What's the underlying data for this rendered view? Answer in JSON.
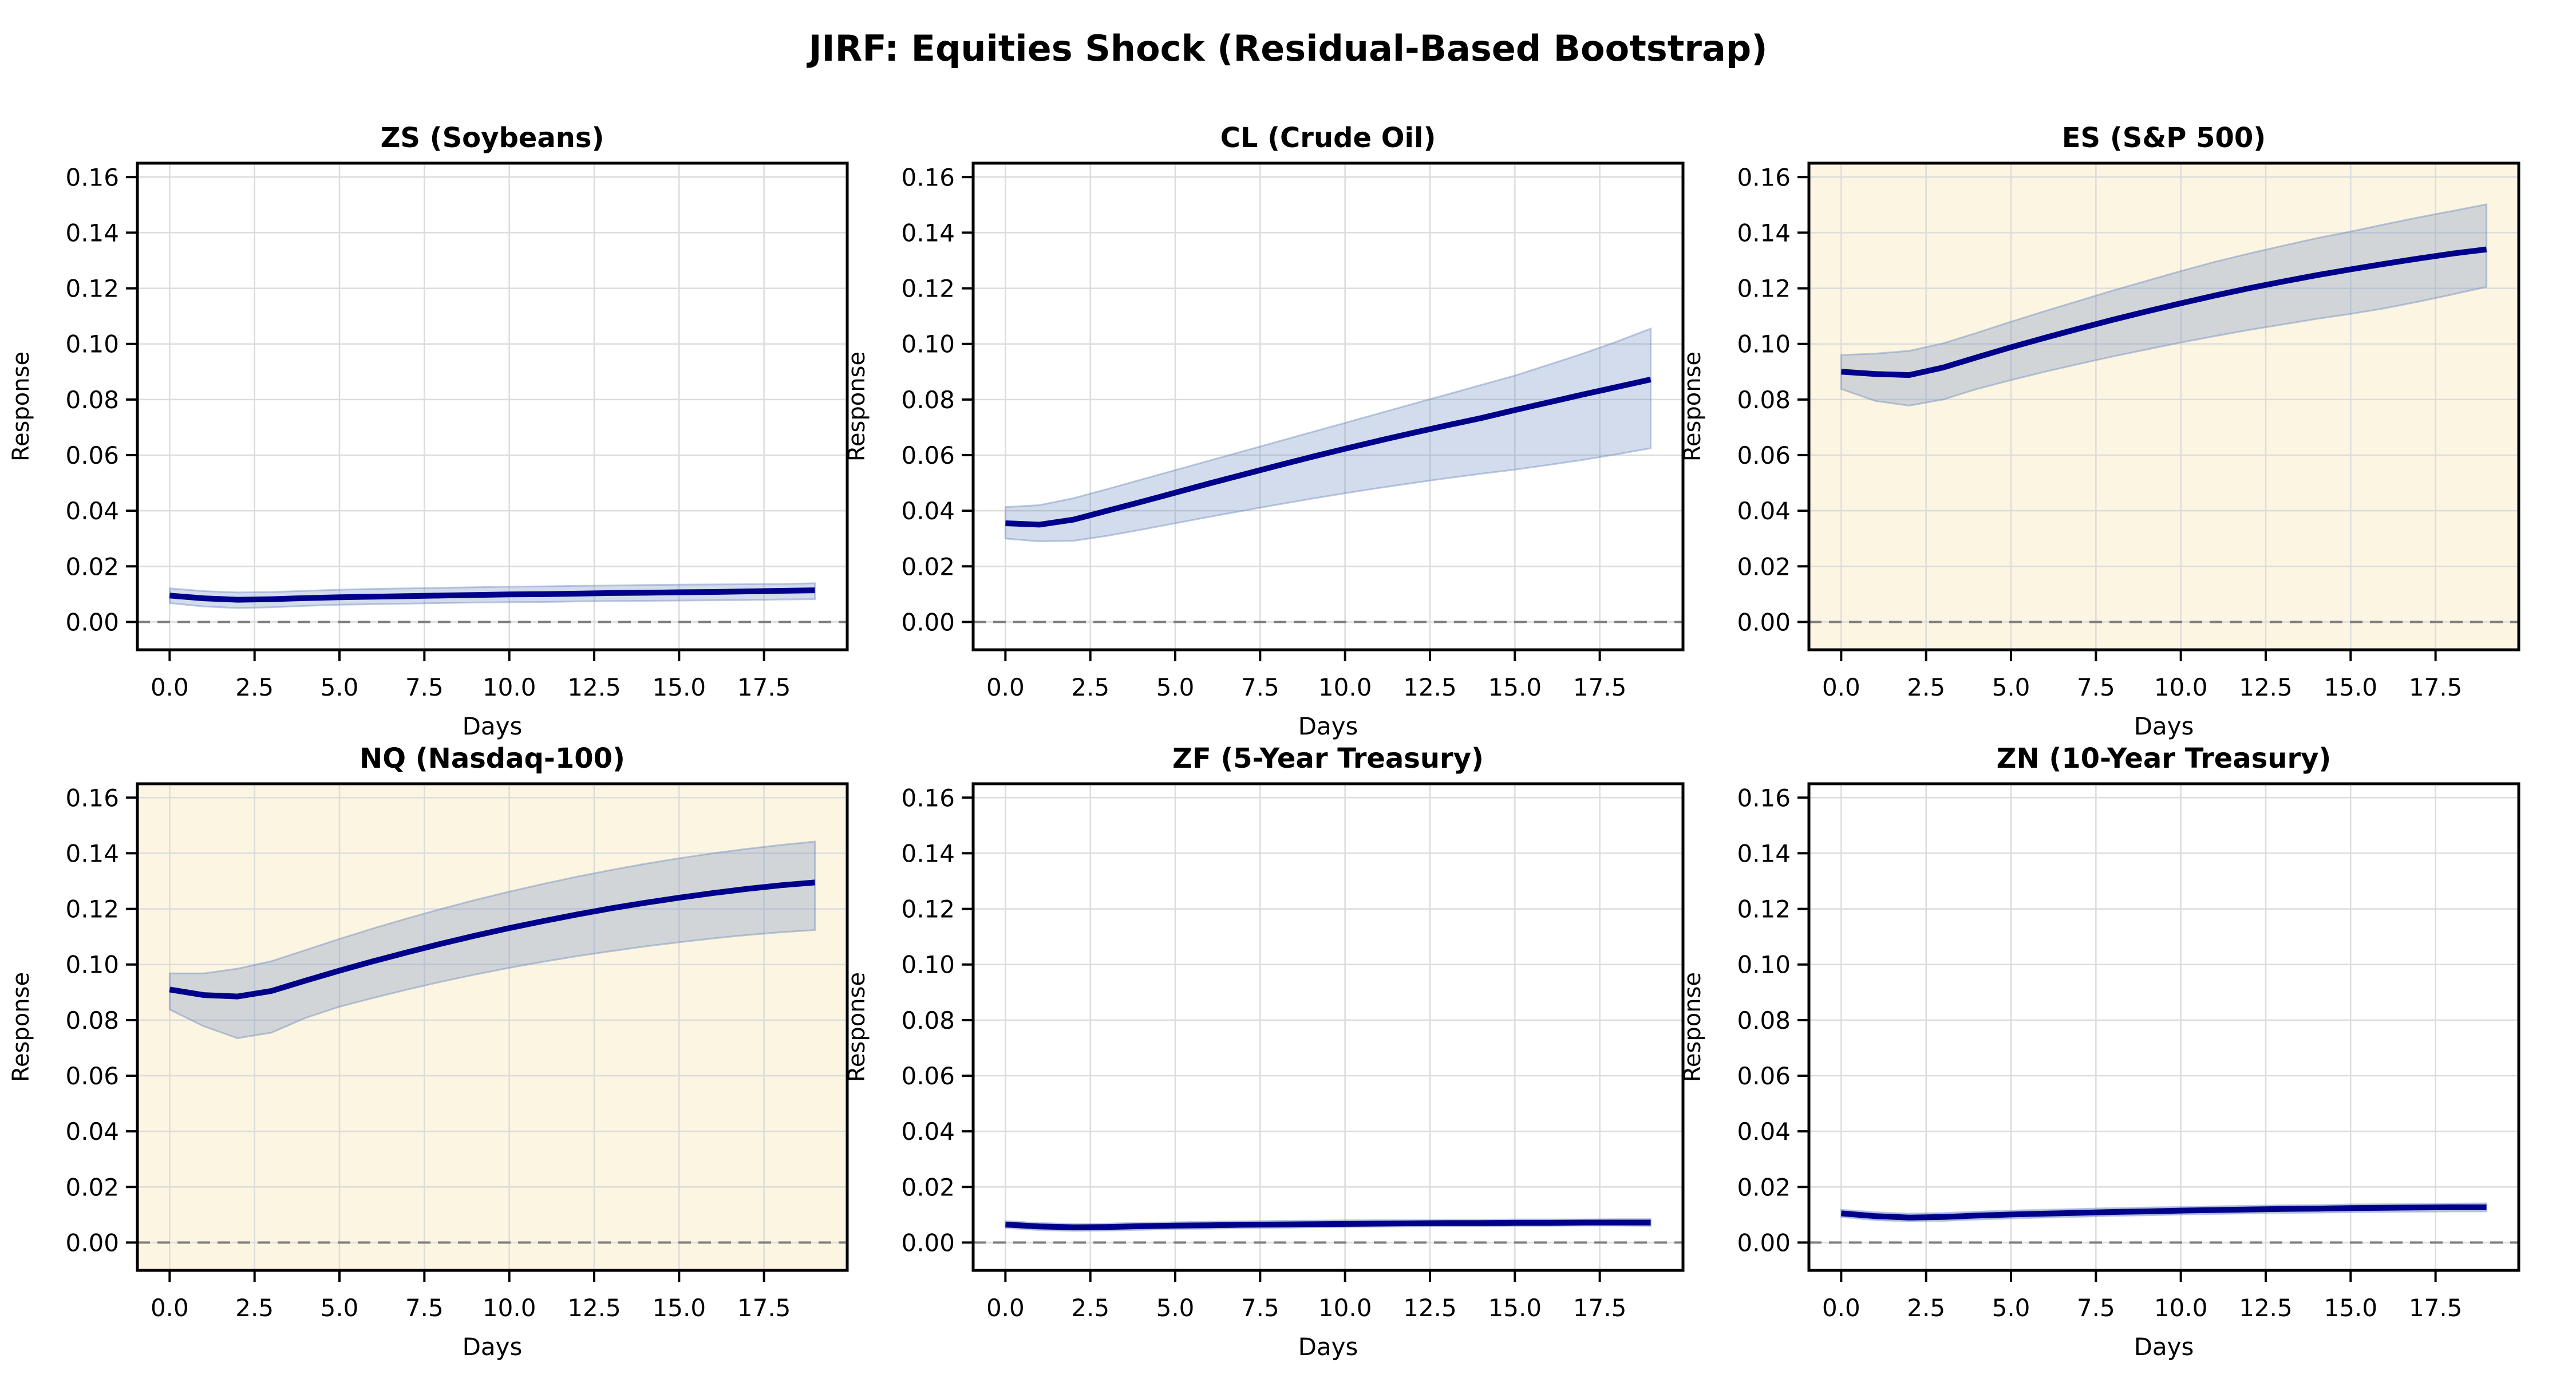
{
  "title": "JIRF: Equities Shock (Residual-Based Bootstrap)",
  "chart_data": {
    "type": "line",
    "layout": {
      "rows": 2,
      "cols": 3
    },
    "x": [
      0,
      1,
      2,
      3,
      4,
      5,
      6,
      7,
      8,
      9,
      10,
      11,
      12,
      13,
      14,
      15,
      16,
      17,
      18,
      19
    ],
    "xlabel": "Days",
    "ylabel": "Response",
    "xticks": [
      0.0,
      2.5,
      5.0,
      7.5,
      10.0,
      12.5,
      15.0,
      17.5
    ],
    "yticks": [
      0.0,
      0.02,
      0.04,
      0.06,
      0.08,
      0.1,
      0.12,
      0.14,
      0.16
    ],
    "xlim": [
      -0.95,
      19.95
    ],
    "ylim": [
      -0.01,
      0.165
    ],
    "zero_line": 0.0,
    "grid": true,
    "legend": "none",
    "colors": {
      "line": "#00008B",
      "band": "#6E8CBF",
      "highlight_bg": "#FCF5E2",
      "panel_bg": "#FFFFFF",
      "grid_line": "#DCDCDC",
      "zero_line": "#7F7F7F",
      "spine": "#000000",
      "text": "#000000"
    },
    "panels": [
      {
        "id": "ZS",
        "title": "ZS (Soybeans)",
        "highlighted": false,
        "mean": [
          0.0095,
          0.0085,
          0.008,
          0.0082,
          0.0086,
          0.0089,
          0.0091,
          0.0093,
          0.0095,
          0.0097,
          0.0099,
          0.01,
          0.0102,
          0.0104,
          0.0105,
          0.0107,
          0.0108,
          0.011,
          0.0112,
          0.0114
        ],
        "lo": [
          0.0068,
          0.0056,
          0.005,
          0.0053,
          0.0058,
          0.0062,
          0.0064,
          0.0066,
          0.0068,
          0.007,
          0.0071,
          0.0072,
          0.0074,
          0.0075,
          0.0076,
          0.0077,
          0.0078,
          0.0079,
          0.0081,
          0.0082
        ],
        "hi": [
          0.0121,
          0.0111,
          0.0106,
          0.0108,
          0.0112,
          0.0116,
          0.0119,
          0.0121,
          0.0123,
          0.0125,
          0.0127,
          0.0128,
          0.013,
          0.0131,
          0.0133,
          0.0134,
          0.0135,
          0.0136,
          0.0137,
          0.0139
        ]
      },
      {
        "id": "CL",
        "title": "CL (Crude Oil)",
        "highlighted": false,
        "mean": [
          0.0355,
          0.035,
          0.0368,
          0.04,
          0.0432,
          0.0465,
          0.0498,
          0.053,
          0.0562,
          0.0593,
          0.0623,
          0.0652,
          0.068,
          0.0707,
          0.0733,
          0.0762,
          0.079,
          0.0818,
          0.0845,
          0.0872
        ],
        "lo": [
          0.03,
          0.029,
          0.0292,
          0.031,
          0.0332,
          0.0355,
          0.0378,
          0.04,
          0.0422,
          0.0443,
          0.0463,
          0.0482,
          0.05,
          0.0517,
          0.0533,
          0.0548,
          0.0565,
          0.0583,
          0.0603,
          0.0625
        ],
        "hi": [
          0.0413,
          0.042,
          0.0445,
          0.0478,
          0.0512,
          0.0546,
          0.058,
          0.0614,
          0.0648,
          0.0682,
          0.0716,
          0.075,
          0.0784,
          0.0818,
          0.0852,
          0.0886,
          0.0925,
          0.0965,
          0.1008,
          0.1055
        ]
      },
      {
        "id": "ES",
        "title": "ES (S&P 500)",
        "highlighted": true,
        "mean": [
          0.09,
          0.0892,
          0.0888,
          0.0915,
          0.0952,
          0.0988,
          0.1022,
          0.1055,
          0.1087,
          0.1117,
          0.1146,
          0.1174,
          0.12,
          0.1224,
          0.1247,
          0.1268,
          0.1288,
          0.1307,
          0.1325,
          0.134
        ],
        "lo": [
          0.0838,
          0.0795,
          0.0778,
          0.08,
          0.0838,
          0.087,
          0.09,
          0.0928,
          0.0955,
          0.098,
          0.1005,
          0.1028,
          0.105,
          0.107,
          0.109,
          0.1108,
          0.1128,
          0.1152,
          0.1178,
          0.1205
        ],
        "hi": [
          0.096,
          0.0965,
          0.0975,
          0.1002,
          0.104,
          0.108,
          0.1118,
          0.1155,
          0.1192,
          0.1227,
          0.1262,
          0.1295,
          0.1325,
          0.1353,
          0.138,
          0.1404,
          0.143,
          0.1455,
          0.1478,
          0.1502
        ]
      },
      {
        "id": "NQ",
        "title": "NQ (Nasdaq-100)",
        "highlighted": true,
        "mean": [
          0.091,
          0.089,
          0.0885,
          0.0905,
          0.0942,
          0.0978,
          0.1012,
          0.1044,
          0.1075,
          0.1104,
          0.1131,
          0.1156,
          0.118,
          0.1202,
          0.1222,
          0.124,
          0.1257,
          0.1272,
          0.1285,
          0.1295
        ],
        "lo": [
          0.0838,
          0.0778,
          0.0735,
          0.0755,
          0.0808,
          0.0848,
          0.088,
          0.091,
          0.0938,
          0.0964,
          0.0988,
          0.101,
          0.103,
          0.1048,
          0.1065,
          0.108,
          0.1094,
          0.1106,
          0.1116,
          0.1124
        ],
        "hi": [
          0.0968,
          0.0968,
          0.0985,
          0.1012,
          0.1052,
          0.1092,
          0.113,
          0.1166,
          0.12,
          0.1232,
          0.1262,
          0.129,
          0.1316,
          0.134,
          0.1362,
          0.1382,
          0.14,
          0.1416,
          0.143,
          0.1442
        ]
      },
      {
        "id": "ZF",
        "title": "ZF (5-Year Treasury)",
        "highlighted": false,
        "mean": [
          0.0065,
          0.0058,
          0.0055,
          0.0056,
          0.0059,
          0.0061,
          0.0062,
          0.0064,
          0.0065,
          0.0066,
          0.0067,
          0.0068,
          0.0069,
          0.007,
          0.007,
          0.0071,
          0.0071,
          0.0072,
          0.0072,
          0.0072
        ],
        "lo": [
          0.0053,
          0.0045,
          0.0042,
          0.0043,
          0.0046,
          0.0049,
          0.005,
          0.0052,
          0.0053,
          0.0055,
          0.0056,
          0.0057,
          0.0058,
          0.0059,
          0.0059,
          0.006,
          0.006,
          0.0061,
          0.0061,
          0.006
        ],
        "hi": [
          0.0077,
          0.007,
          0.0067,
          0.0068,
          0.0071,
          0.0073,
          0.0075,
          0.0076,
          0.0078,
          0.0079,
          0.008,
          0.0081,
          0.0081,
          0.0082,
          0.0082,
          0.0083,
          0.0083,
          0.0083,
          0.0084,
          0.0084
        ]
      },
      {
        "id": "ZN",
        "title": "ZN (10-Year Treasury)",
        "highlighted": false,
        "mean": [
          0.0105,
          0.0095,
          0.009,
          0.0092,
          0.0097,
          0.0101,
          0.0104,
          0.0107,
          0.011,
          0.0112,
          0.0115,
          0.0117,
          0.0119,
          0.0121,
          0.0122,
          0.0124,
          0.0125,
          0.0126,
          0.0127,
          0.0127
        ],
        "lo": [
          0.0092,
          0.0081,
          0.0076,
          0.0078,
          0.0083,
          0.0087,
          0.009,
          0.0093,
          0.0096,
          0.0098,
          0.0101,
          0.0103,
          0.0105,
          0.0106,
          0.0108,
          0.0109,
          0.011,
          0.0111,
          0.0112,
          0.0112
        ],
        "hi": [
          0.0118,
          0.0109,
          0.0104,
          0.0106,
          0.0111,
          0.0115,
          0.0118,
          0.0121,
          0.0124,
          0.0126,
          0.0128,
          0.013,
          0.0132,
          0.0134,
          0.0135,
          0.0137,
          0.0138,
          0.0139,
          0.014,
          0.0141
        ]
      }
    ]
  }
}
